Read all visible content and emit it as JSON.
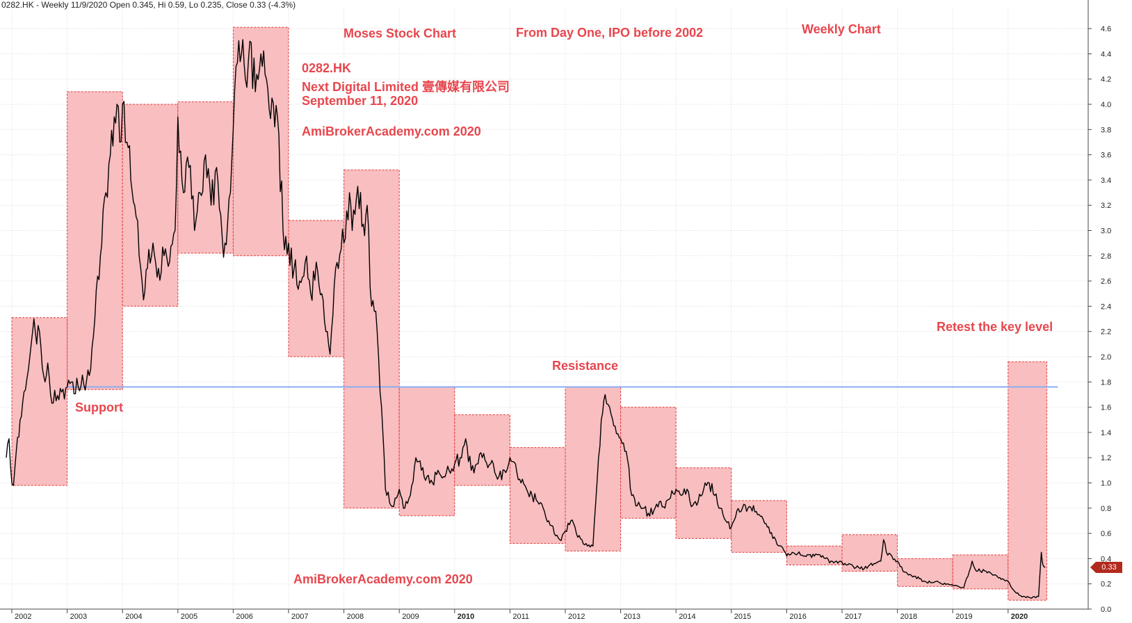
{
  "header": {
    "text": "0282.HK - Weekly 11/9/2020 Open 0.345, Hi 0.59, Lo 0.235, Close 0.33 (-4.3%)"
  },
  "annotations": {
    "moses": "Moses Stock Chart",
    "from_day_one": "From Day One, IPO before 2002",
    "weekly_chart": "Weekly Chart",
    "ticker": "0282.HK",
    "company": "Next Digital Limited 壹傳媒有限公司",
    "date": "September 11, 2020",
    "site1": "AmiBrokerAcademy.com 2020",
    "site2": "AmiBrokerAcademy.com  2020",
    "resistance": "Resistance",
    "support": "Support",
    "retest": "Retest the key level"
  },
  "last_price_label": "0.33",
  "colors": {
    "box_fill": "#f7b9bb",
    "box_border": "#e23b3b",
    "price_line": "#000000",
    "key_level_line": "#8aaef0",
    "annotation_text": "#e8464d",
    "last_price_badge": "#b22a1d",
    "grid": "#d8d8d8"
  },
  "chart_data": {
    "type": "line",
    "title": "",
    "xlabel": "",
    "ylabel": "",
    "ylim": [
      0.0,
      4.8
    ],
    "y_ticks": [
      "0.0",
      "0.2",
      "0.4",
      "0.6",
      "0.8",
      "1.0",
      "1.2",
      "1.4",
      "1.6",
      "1.8",
      "2.0",
      "2.2",
      "2.4",
      "2.6",
      "2.8",
      "3.0",
      "3.2",
      "3.4",
      "3.6",
      "3.8",
      "4.0",
      "4.2",
      "4.4",
      "4.6",
      "4.8"
    ],
    "x_range": [
      2001.9,
      2020.9
    ],
    "x_ticks": [
      {
        "x": 2002,
        "label": "2002",
        "bold": false
      },
      {
        "x": 2003,
        "label": "2003",
        "bold": false
      },
      {
        "x": 2004,
        "label": "2004",
        "bold": false
      },
      {
        "x": 2005,
        "label": "2005",
        "bold": false
      },
      {
        "x": 2006,
        "label": "2006",
        "bold": false
      },
      {
        "x": 2007,
        "label": "2007",
        "bold": false
      },
      {
        "x": 2008,
        "label": "2008",
        "bold": false
      },
      {
        "x": 2009,
        "label": "2009",
        "bold": false
      },
      {
        "x": 2010,
        "label": "2010",
        "bold": true
      },
      {
        "x": 2011,
        "label": "2011",
        "bold": false
      },
      {
        "x": 2012,
        "label": "2012",
        "bold": false
      },
      {
        "x": 2013,
        "label": "2013",
        "bold": false
      },
      {
        "x": 2014,
        "label": "2014",
        "bold": false
      },
      {
        "x": 2015,
        "label": "2015",
        "bold": false
      },
      {
        "x": 2016,
        "label": "2016",
        "bold": false
      },
      {
        "x": 2017,
        "label": "2017",
        "bold": false
      },
      {
        "x": 2018,
        "label": "2018",
        "bold": false
      },
      {
        "x": 2019,
        "label": "2019",
        "bold": false
      },
      {
        "x": 2020,
        "label": "2020",
        "bold": true
      }
    ],
    "grid": true,
    "key_level": {
      "y": 1.76,
      "x_start": 2003.0,
      "x_end": 2020.9
    },
    "yearly_boxes": [
      {
        "x0": 2002.0,
        "x1": 2003.0,
        "low": 0.98,
        "high": 2.31
      },
      {
        "x0": 2003.0,
        "x1": 2004.0,
        "low": 1.74,
        "high": 4.1
      },
      {
        "x0": 2004.0,
        "x1": 2005.0,
        "low": 2.4,
        "high": 4.0
      },
      {
        "x0": 2005.0,
        "x1": 2006.0,
        "low": 2.82,
        "high": 4.02
      },
      {
        "x0": 2006.0,
        "x1": 2007.0,
        "low": 2.8,
        "high": 4.61
      },
      {
        "x0": 2007.0,
        "x1": 2008.0,
        "low": 2.0,
        "high": 3.08
      },
      {
        "x0": 2008.0,
        "x1": 2009.0,
        "low": 0.8,
        "high": 3.48
      },
      {
        "x0": 2009.0,
        "x1": 2010.0,
        "low": 0.74,
        "high": 1.76
      },
      {
        "x0": 2010.0,
        "x1": 2011.0,
        "low": 0.98,
        "high": 1.54
      },
      {
        "x0": 2011.0,
        "x1": 2012.0,
        "low": 0.52,
        "high": 1.28
      },
      {
        "x0": 2012.0,
        "x1": 2013.0,
        "low": 0.46,
        "high": 1.76
      },
      {
        "x0": 2013.0,
        "x1": 2014.0,
        "low": 0.72,
        "high": 1.6
      },
      {
        "x0": 2014.0,
        "x1": 2015.0,
        "low": 0.56,
        "high": 1.12
      },
      {
        "x0": 2015.0,
        "x1": 2016.0,
        "low": 0.45,
        "high": 0.86
      },
      {
        "x0": 2016.0,
        "x1": 2017.0,
        "low": 0.35,
        "high": 0.5
      },
      {
        "x0": 2017.0,
        "x1": 2018.0,
        "low": 0.3,
        "high": 0.59
      },
      {
        "x0": 2018.0,
        "x1": 2019.0,
        "low": 0.18,
        "high": 0.4
      },
      {
        "x0": 2019.0,
        "x1": 2020.0,
        "low": 0.16,
        "high": 0.43
      },
      {
        "x0": 2020.0,
        "x1": 2020.7,
        "low": 0.07,
        "high": 1.96
      }
    ],
    "series": [
      {
        "points": [
          [
            2001.9,
            1.2
          ],
          [
            2001.95,
            1.35
          ],
          [
            2002.0,
            1.0
          ],
          [
            2002.03,
            0.98
          ],
          [
            2002.08,
            1.25
          ],
          [
            2002.15,
            1.5
          ],
          [
            2002.22,
            1.72
          ],
          [
            2002.3,
            1.9
          ],
          [
            2002.35,
            2.1
          ],
          [
            2002.4,
            2.3
          ],
          [
            2002.45,
            2.1
          ],
          [
            2002.5,
            2.2
          ],
          [
            2002.6,
            1.8
          ],
          [
            2002.65,
            1.95
          ],
          [
            2002.7,
            1.7
          ],
          [
            2002.8,
            1.65
          ],
          [
            2002.9,
            1.72
          ],
          [
            2003.0,
            1.76
          ],
          [
            2003.1,
            1.8
          ],
          [
            2003.2,
            1.76
          ],
          [
            2003.3,
            1.78
          ],
          [
            2003.4,
            1.85
          ],
          [
            2003.5,
            2.3
          ],
          [
            2003.6,
            2.8
          ],
          [
            2003.7,
            3.3
          ],
          [
            2003.78,
            3.6
          ],
          [
            2003.85,
            3.9
          ],
          [
            2003.9,
            4.0
          ],
          [
            2003.95,
            3.7
          ],
          [
            2004.0,
            4.0
          ],
          [
            2004.08,
            3.7
          ],
          [
            2004.15,
            3.4
          ],
          [
            2004.22,
            3.2
          ],
          [
            2004.3,
            2.8
          ],
          [
            2004.38,
            2.45
          ],
          [
            2004.45,
            2.7
          ],
          [
            2004.55,
            2.9
          ],
          [
            2004.65,
            2.7
          ],
          [
            2004.75,
            2.8
          ],
          [
            2004.85,
            2.75
          ],
          [
            2004.95,
            3.0
          ],
          [
            2005.0,
            3.9
          ],
          [
            2005.1,
            3.3
          ],
          [
            2005.2,
            3.5
          ],
          [
            2005.3,
            3.0
          ],
          [
            2005.4,
            3.3
          ],
          [
            2005.5,
            3.6
          ],
          [
            2005.6,
            3.2
          ],
          [
            2005.7,
            3.5
          ],
          [
            2005.8,
            2.95
          ],
          [
            2005.85,
            2.9
          ],
          [
            2005.95,
            3.3
          ],
          [
            2006.0,
            3.8
          ],
          [
            2006.05,
            4.3
          ],
          [
            2006.15,
            4.4
          ],
          [
            2006.22,
            4.2
          ],
          [
            2006.3,
            4.5
          ],
          [
            2006.4,
            4.1
          ],
          [
            2006.5,
            4.4
          ],
          [
            2006.6,
            4.2
          ],
          [
            2006.7,
            4.05
          ],
          [
            2006.8,
            3.9
          ],
          [
            2006.9,
            3.0
          ],
          [
            2007.0,
            2.9
          ],
          [
            2007.1,
            2.7
          ],
          [
            2007.2,
            2.6
          ],
          [
            2007.3,
            2.75
          ],
          [
            2007.4,
            2.5
          ],
          [
            2007.5,
            2.75
          ],
          [
            2007.6,
            2.5
          ],
          [
            2007.7,
            2.2
          ],
          [
            2007.75,
            2.02
          ],
          [
            2007.85,
            2.7
          ],
          [
            2007.95,
            2.85
          ],
          [
            2008.0,
            2.9
          ],
          [
            2008.1,
            3.3
          ],
          [
            2008.15,
            3.0
          ],
          [
            2008.25,
            3.35
          ],
          [
            2008.35,
            3.05
          ],
          [
            2008.42,
            3.2
          ],
          [
            2008.5,
            2.4
          ],
          [
            2008.6,
            2.2
          ],
          [
            2008.68,
            1.6
          ],
          [
            2008.75,
            0.95
          ],
          [
            2008.85,
            0.82
          ],
          [
            2008.95,
            0.88
          ],
          [
            2009.0,
            0.95
          ],
          [
            2009.1,
            0.8
          ],
          [
            2009.2,
            0.9
          ],
          [
            2009.3,
            1.2
          ],
          [
            2009.4,
            1.1
          ],
          [
            2009.5,
            1.05
          ],
          [
            2009.6,
            1.0
          ],
          [
            2009.7,
            1.1
          ],
          [
            2009.8,
            1.05
          ],
          [
            2009.9,
            1.1
          ],
          [
            2010.0,
            1.15
          ],
          [
            2010.1,
            1.2
          ],
          [
            2010.2,
            1.35
          ],
          [
            2010.3,
            1.1
          ],
          [
            2010.4,
            1.15
          ],
          [
            2010.5,
            1.2
          ],
          [
            2010.6,
            1.12
          ],
          [
            2010.7,
            1.15
          ],
          [
            2010.8,
            1.05
          ],
          [
            2010.9,
            1.1
          ],
          [
            2011.0,
            1.2
          ],
          [
            2011.1,
            1.15
          ],
          [
            2011.2,
            1.0
          ],
          [
            2011.3,
            0.95
          ],
          [
            2011.4,
            0.9
          ],
          [
            2011.5,
            0.85
          ],
          [
            2011.6,
            0.8
          ],
          [
            2011.7,
            0.7
          ],
          [
            2011.8,
            0.6
          ],
          [
            2011.9,
            0.55
          ],
          [
            2012.0,
            0.62
          ],
          [
            2012.1,
            0.7
          ],
          [
            2012.2,
            0.6
          ],
          [
            2012.3,
            0.55
          ],
          [
            2012.4,
            0.5
          ],
          [
            2012.5,
            0.5
          ],
          [
            2012.6,
            1.2
          ],
          [
            2012.65,
            1.5
          ],
          [
            2012.72,
            1.7
          ],
          [
            2012.8,
            1.6
          ],
          [
            2012.9,
            1.45
          ],
          [
            2013.0,
            1.35
          ],
          [
            2013.1,
            1.25
          ],
          [
            2013.2,
            0.9
          ],
          [
            2013.3,
            0.82
          ],
          [
            2013.4,
            0.8
          ],
          [
            2013.5,
            0.76
          ],
          [
            2013.6,
            0.78
          ],
          [
            2013.7,
            0.85
          ],
          [
            2013.8,
            0.8
          ],
          [
            2013.9,
            0.88
          ],
          [
            2014.0,
            0.95
          ],
          [
            2014.1,
            0.9
          ],
          [
            2014.2,
            0.95
          ],
          [
            2014.3,
            0.82
          ],
          [
            2014.4,
            0.85
          ],
          [
            2014.5,
            0.95
          ],
          [
            2014.6,
            1.0
          ],
          [
            2014.7,
            0.9
          ],
          [
            2014.8,
            0.8
          ],
          [
            2014.9,
            0.7
          ],
          [
            2015.0,
            0.65
          ],
          [
            2015.1,
            0.78
          ],
          [
            2015.2,
            0.8
          ],
          [
            2015.3,
            0.8
          ],
          [
            2015.4,
            0.82
          ],
          [
            2015.5,
            0.75
          ],
          [
            2015.6,
            0.68
          ],
          [
            2015.7,
            0.6
          ],
          [
            2015.8,
            0.55
          ],
          [
            2015.9,
            0.5
          ],
          [
            2016.0,
            0.42
          ],
          [
            2016.1,
            0.45
          ],
          [
            2016.2,
            0.44
          ],
          [
            2016.3,
            0.42
          ],
          [
            2016.4,
            0.43
          ],
          [
            2016.5,
            0.42
          ],
          [
            2016.6,
            0.43
          ],
          [
            2016.7,
            0.4
          ],
          [
            2016.8,
            0.38
          ],
          [
            2016.9,
            0.38
          ],
          [
            2017.0,
            0.37
          ],
          [
            2017.1,
            0.35
          ],
          [
            2017.2,
            0.34
          ],
          [
            2017.3,
            0.33
          ],
          [
            2017.4,
            0.32
          ],
          [
            2017.5,
            0.35
          ],
          [
            2017.6,
            0.36
          ],
          [
            2017.7,
            0.38
          ],
          [
            2017.75,
            0.55
          ],
          [
            2017.8,
            0.45
          ],
          [
            2017.9,
            0.42
          ],
          [
            2018.0,
            0.38
          ],
          [
            2018.1,
            0.3
          ],
          [
            2018.2,
            0.27
          ],
          [
            2018.3,
            0.26
          ],
          [
            2018.4,
            0.24
          ],
          [
            2018.5,
            0.22
          ],
          [
            2018.6,
            0.21
          ],
          [
            2018.7,
            0.22
          ],
          [
            2018.8,
            0.2
          ],
          [
            2018.9,
            0.2
          ],
          [
            2019.0,
            0.19
          ],
          [
            2019.1,
            0.18
          ],
          [
            2019.2,
            0.17
          ],
          [
            2019.3,
            0.3
          ],
          [
            2019.35,
            0.38
          ],
          [
            2019.4,
            0.32
          ],
          [
            2019.5,
            0.3
          ],
          [
            2019.6,
            0.3
          ],
          [
            2019.7,
            0.28
          ],
          [
            2019.8,
            0.26
          ],
          [
            2019.9,
            0.24
          ],
          [
            2020.0,
            0.22
          ],
          [
            2020.1,
            0.15
          ],
          [
            2020.2,
            0.11
          ],
          [
            2020.3,
            0.1
          ],
          [
            2020.4,
            0.09
          ],
          [
            2020.5,
            0.09
          ],
          [
            2020.55,
            0.1
          ],
          [
            2020.6,
            0.45
          ],
          [
            2020.63,
            0.35
          ],
          [
            2020.67,
            0.33
          ]
        ]
      }
    ]
  }
}
